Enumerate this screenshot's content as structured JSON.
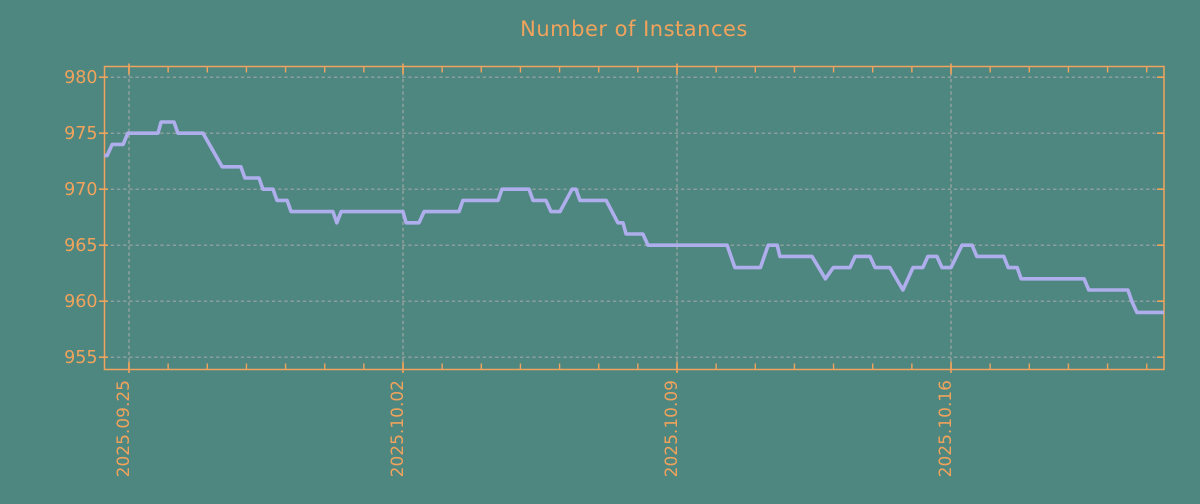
{
  "colors": {
    "background": "#4E8680",
    "axis": "#F0A35C",
    "grid": "#ABABAB",
    "line": "#AEAEEC"
  },
  "chart_data": {
    "type": "line",
    "title": "Number of Instances",
    "xlabel": "",
    "ylabel": "",
    "grid": true,
    "legend": "none",
    "x_axis": {
      "unit": "days since 2025-09-25",
      "range_days": [
        -0.63,
        26.44
      ],
      "minor_tick_every_days": 1,
      "tick_labels": [
        {
          "day": 0,
          "label": "2025.09.25"
        },
        {
          "day": 7,
          "label": "2025.10.02"
        },
        {
          "day": 14,
          "label": "2025.10.09"
        },
        {
          "day": 21,
          "label": "2025.10.16"
        }
      ]
    },
    "y_axis": {
      "range": [
        954.0,
        980.9
      ],
      "ticks": [
        980,
        975,
        970,
        965,
        960,
        955
      ]
    },
    "series": [
      {
        "name": "instances",
        "points": [
          [
            -0.63,
            973
          ],
          [
            -0.56,
            973
          ],
          [
            -0.43,
            974
          ],
          [
            -0.15,
            974
          ],
          [
            -0.03,
            975
          ],
          [
            0.74,
            975
          ],
          [
            0.82,
            976
          ],
          [
            1.15,
            976
          ],
          [
            1.25,
            975
          ],
          [
            1.89,
            975
          ],
          [
            2.38,
            972
          ],
          [
            2.86,
            972
          ],
          [
            2.96,
            971
          ],
          [
            3.32,
            971
          ],
          [
            3.42,
            970
          ],
          [
            3.68,
            970
          ],
          [
            3.78,
            969
          ],
          [
            4.04,
            969
          ],
          [
            4.14,
            968
          ],
          [
            5.21,
            968
          ],
          [
            5.31,
            967
          ],
          [
            5.42,
            968
          ],
          [
            7.0,
            968
          ],
          [
            7.08,
            967
          ],
          [
            7.41,
            967
          ],
          [
            7.54,
            968
          ],
          [
            8.43,
            968
          ],
          [
            8.53,
            969
          ],
          [
            9.43,
            969
          ],
          [
            9.53,
            970
          ],
          [
            10.22,
            970
          ],
          [
            10.32,
            969
          ],
          [
            10.65,
            969
          ],
          [
            10.78,
            968
          ],
          [
            11.01,
            968
          ],
          [
            11.32,
            970
          ],
          [
            11.42,
            970
          ],
          [
            11.52,
            969
          ],
          [
            12.19,
            969
          ],
          [
            12.49,
            967
          ],
          [
            12.62,
            967
          ],
          [
            12.7,
            966
          ],
          [
            13.13,
            966
          ],
          [
            13.26,
            965
          ],
          [
            15.28,
            965
          ],
          [
            15.48,
            963
          ],
          [
            16.13,
            963
          ],
          [
            16.33,
            965
          ],
          [
            16.56,
            965
          ],
          [
            16.63,
            964
          ],
          [
            17.45,
            964
          ],
          [
            17.79,
            962
          ],
          [
            17.99,
            963
          ],
          [
            18.42,
            963
          ],
          [
            18.55,
            964
          ],
          [
            18.93,
            964
          ],
          [
            19.06,
            963
          ],
          [
            19.44,
            963
          ],
          [
            19.77,
            961
          ],
          [
            20.03,
            963
          ],
          [
            20.28,
            963
          ],
          [
            20.41,
            964
          ],
          [
            20.64,
            964
          ],
          [
            20.77,
            963
          ],
          [
            21.0,
            963
          ],
          [
            21.28,
            965
          ],
          [
            21.54,
            965
          ],
          [
            21.66,
            964
          ],
          [
            22.35,
            964
          ],
          [
            22.46,
            963
          ],
          [
            22.69,
            963
          ],
          [
            22.79,
            962
          ],
          [
            24.4,
            962
          ],
          [
            24.52,
            961
          ],
          [
            25.52,
            961
          ],
          [
            25.62,
            960
          ],
          [
            25.75,
            959
          ],
          [
            26.44,
            959
          ]
        ]
      }
    ]
  }
}
